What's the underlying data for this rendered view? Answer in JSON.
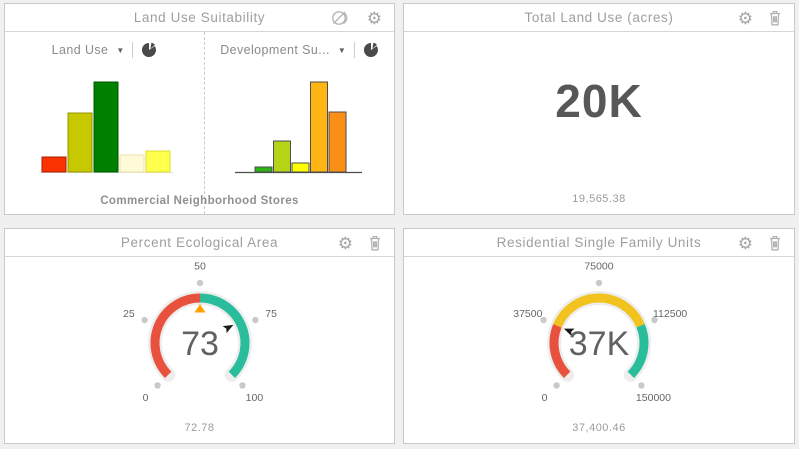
{
  "panels": {
    "land_use_suitability": {
      "title": "Land Use Suitability",
      "left_chart": {
        "selector_label": "Land Use"
      },
      "right_chart": {
        "selector_label": "Development Su..."
      },
      "axis_label": "Commercial Neighborhood Stores"
    },
    "total_land_use": {
      "title": "Total Land Use (acres)",
      "value": "20K",
      "footer_value": "19,565.38"
    },
    "percent_ecological": {
      "title": "Percent Ecological Area",
      "value": "73",
      "footer_value": "72.78"
    },
    "residential_units": {
      "title": "Residential Single Family Units",
      "value": "37K",
      "footer_value": "37,400.46"
    }
  },
  "icons": {
    "gear_glyph": "⚙",
    "caret_down_glyph": "▼"
  },
  "chart_data": [
    {
      "type": "bar",
      "title": "Land Use",
      "xlabel": "Commercial Neighborhood Stores",
      "values": [
        15,
        59,
        90,
        17,
        21
      ],
      "ylim": [
        0,
        100
      ],
      "colors": [
        "#fb3300",
        "#c8c800",
        "#008000",
        "#fffbd9",
        "#ffff4d"
      ],
      "border_colors": [
        "#a52000",
        "#959500",
        "#005500",
        "#ece2a8",
        "#dede30"
      ],
      "axis_line": false
    },
    {
      "type": "bar",
      "title": "Development Suitability",
      "values": [
        5,
        31,
        9,
        90,
        60
      ],
      "ylim": [
        0,
        100
      ],
      "colors": [
        "#2cb512",
        "#b5d418",
        "#fdff00",
        "#ffb513",
        "#fb8e14"
      ],
      "border_colors": [
        "#4d4d4d",
        "#4d4d4d",
        "#4d4d4d",
        "#4d4d4d",
        "#4d4d4d"
      ],
      "axis_line": true
    },
    {
      "type": "gauge",
      "title": "Percent Ecological Area",
      "min": 0,
      "max": 100,
      "value": 72.78,
      "display_value": "73",
      "footer_value": "72.78",
      "ticks": [
        0,
        25,
        50,
        75,
        100
      ],
      "segments": [
        {
          "from": 0,
          "to": 50,
          "color": "#e8513d"
        },
        {
          "from": 50,
          "to": 100,
          "color": "#2abd9c"
        }
      ],
      "threshold": {
        "value": 50,
        "color": "#ffa200"
      }
    },
    {
      "type": "gauge",
      "title": "Residential Single Family Units",
      "min": 0,
      "max": 150000,
      "value": 37400.46,
      "display_value": "37K",
      "footer_value": "37,400.46",
      "ticks": [
        0,
        37500,
        75000,
        112500,
        150000
      ],
      "segments": [
        {
          "from": 0,
          "to": 37500,
          "color": "#e8513d"
        },
        {
          "from": 37500,
          "to": 112500,
          "color": "#f2c21e"
        },
        {
          "from": 112500,
          "to": 150000,
          "color": "#2abd9c"
        }
      ]
    }
  ]
}
